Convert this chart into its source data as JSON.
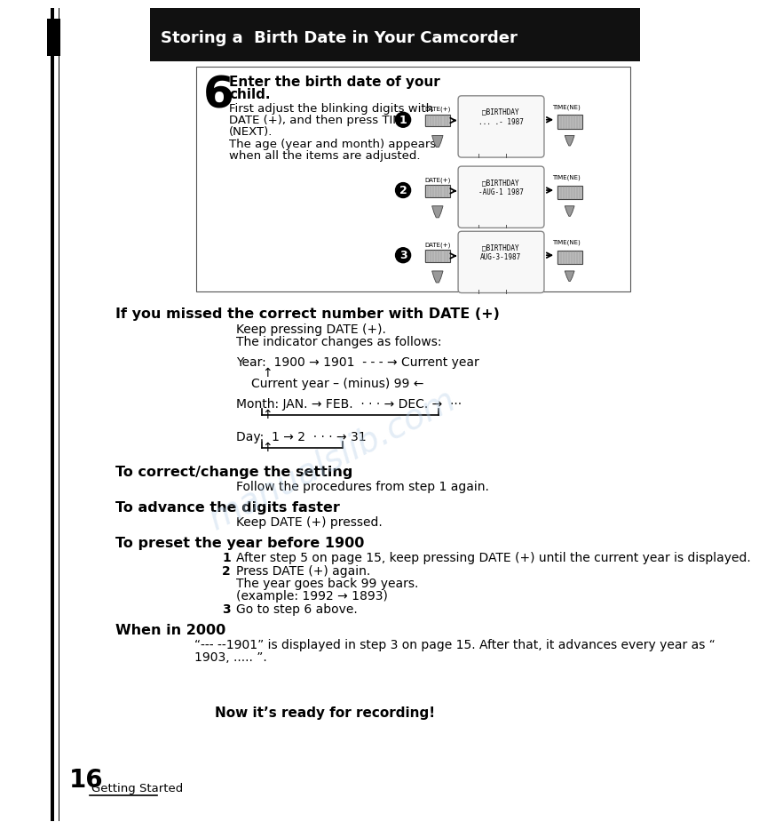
{
  "bg_color": "#ffffff",
  "header_bg": "#111111",
  "header_text": "Storing a  Birth Date in Your Camcorder",
  "header_text_color": "#ffffff",
  "page_number": "16",
  "page_label": "Getting Started",
  "step6_number": "6",
  "step6_bold_line1": "Enter the birth date of your",
  "step6_bold_line2": "child.",
  "step6_text_lines": [
    "First adjust the blinking digits with",
    "DATE (+), and then press TIME",
    "(NEXT).",
    "The age (year and month) appears",
    "when all the items are adjusted."
  ],
  "section1_heading": "If you missed the correct number with DATE (+)",
  "section1_p1": "Keep pressing DATE (+).",
  "section1_p2": "The indicator changes as follows:",
  "year_line": "Year:  1900 → 1901  - - - → Current year",
  "year_cur": "Current year – (minus) 99 ←",
  "month_line": "Month: JAN. → FEB.  · · · → DEC. →  ···",
  "day_line": "Day:  1 → 2  · · · → 31",
  "section2_heading": "To correct/change the setting",
  "section2_text": "Follow the procedures from step 1 again.",
  "section3_heading": "To advance the digits faster",
  "section3_text": "Keep DATE (+) pressed.",
  "section4_heading": "To preset the year before 1900",
  "section4_item1": "After step 5 on page 15, keep pressing DATE (+) until the current year is displayed.",
  "section4_item2a": "Press DATE (+) again.",
  "section4_item2b": "The year goes back 99 years.",
  "section4_item2c": "(example: 1992 → 1893)",
  "section4_item3": "Go to step 6 above.",
  "section5_heading": "When in 2000",
  "section5_line1": "“--- --1901” is displayed in step 3 on page 15. After that, it advances every year as “",
  "section5_line2": "1903, ..... ”.",
  "footer_text": "Now it’s ready for recording!",
  "watermark": "manualslib.com",
  "diag_row1_lines": [
    "DATE(+)",
    "□BIRTHDAY",
    "... .- 1987"
  ],
  "diag_row2_lines": [
    "DATE(+)",
    "□BIRTHDAY",
    "-AUG-1 1987"
  ],
  "diag_row3_lines": [
    "DATE(+)",
    "□BIRTHDAY",
    "AUG-3-1987"
  ]
}
